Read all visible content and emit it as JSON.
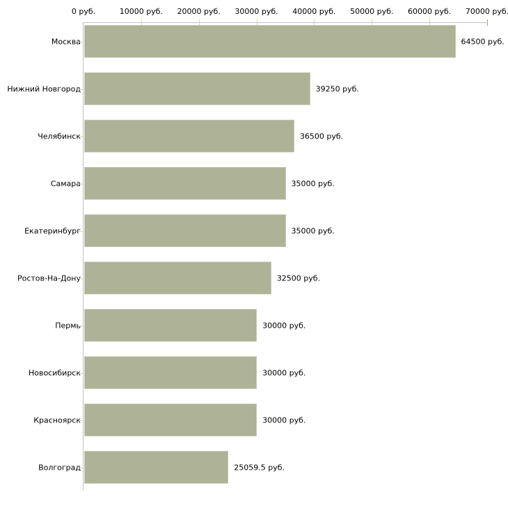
{
  "chart_data": {
    "type": "bar",
    "orientation": "horizontal",
    "title": "",
    "xlabel": "",
    "ylabel": "",
    "categories": [
      "Москва",
      "Нижний Новгород",
      "Челябинск",
      "Самара",
      "Екатеринбург",
      "Ростов-На-Дону",
      "Пермь",
      "Новосибирск",
      "Красноярск",
      "Волгоград"
    ],
    "values": [
      64500,
      39250,
      36500,
      35000,
      35000,
      32500,
      30000,
      30000,
      30000,
      25059.5
    ],
    "value_labels": [
      "64500 руб.",
      "39250 руб.",
      "36500 руб.",
      "35000 руб.",
      "35000 руб.",
      "32500 руб.",
      "30000 руб.",
      "30000 руб.",
      "30000 руб.",
      "25059.5 руб."
    ],
    "x_tick_values": [
      0,
      10000,
      20000,
      30000,
      40000,
      50000,
      60000,
      70000
    ],
    "x_tick_labels": [
      "0 руб.",
      "10000 руб.",
      "20000 руб.",
      "30000 руб.",
      "40000 руб.",
      "50000 руб.",
      "60000 руб.",
      "70000 руб."
    ],
    "xlim": [
      0,
      70000
    ],
    "grid": "off",
    "legend": "none",
    "axis_position": "top"
  },
  "colors": {
    "bar_fill": "#aeb398",
    "bar_border": "#c6c9b2",
    "axis_line": "#c0c0c0",
    "tick": "#d6d8ab",
    "end_tick": "#9d9e71",
    "text": "#000000",
    "background": "#ffffff"
  }
}
